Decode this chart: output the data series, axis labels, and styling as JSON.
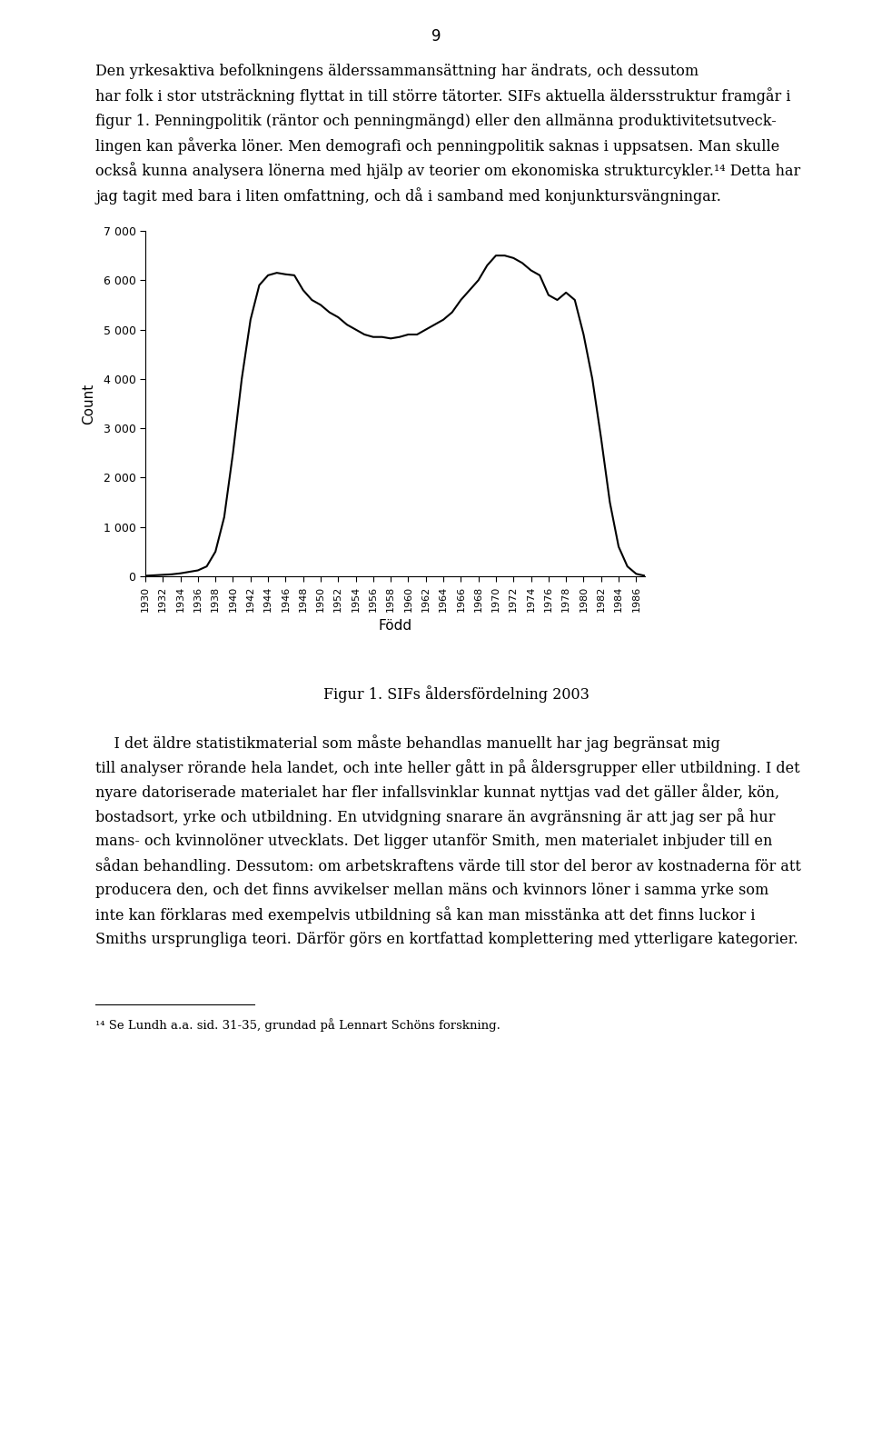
{
  "page_number": "9",
  "para1_line1": "Den yrkesaktiva befolkningens älderssammansättning har ändrats, och dessutom",
  "para1_line2": "har folk i stor utsträckning flyttat in till större tätorter. SIFs aktuella äldersstruktur framgår i",
  "para1_line3": "figur 1. Penningpolitik (räntor och penningmängd) eller den allmänna produktivitetsutveck-",
  "para1_line4": "lingen kan påverka löner. Men demografi och penningpolitik saknas i uppsatsen. Man skulle",
  "para1_line5": "också kunna analysera lönerna med hjälp av teorier om ekonomiska strukturcykler.¹⁴ Detta har",
  "para1_line6": "jag tagit med bara i liten omfattning, och då i samband med konjunktursvängningar.",
  "fig_caption": "Figur 1. SIFs åldersfördelning 2003",
  "para2_line1": "    I det äldre statistikmaterial som måste behandlas manuellt har jag begränsat mig",
  "para2_line2": "till analyser rörande hela landet, och inte heller gått in på åldersgrupper eller utbildning. I det",
  "para2_line3": "nyare datoriserade materialet har fler infallsvinklar kunnat nyttjas vad det gäller ålder, kön,",
  "para2_line4": "bostadsort, yrke och utbildning. En utvidgning snarare än avgränsning är att jag ser på hur",
  "para2_line5": "mans- och kvinnolöner utvecklats. Det ligger utanför Smith, men materialet inbjuder till en",
  "para2_line6": "sådan behandling. Dessutom: om arbetskraftens värde till stor del beror av kostnaderna för att",
  "para2_line7": "producera den, och det finns avvikelser mellan mäns och kvinnors löner i samma yrke som",
  "para2_line8": "inte kan förklaras med exempelvis utbildning så kan man misstänka att det finns luckor i",
  "para2_line9": "Smiths ursprungliga teori. Därför görs en kortfattad komplettering med ytterligare kategorier.",
  "footnote_line": "¹⁴ Se Lundh a.a. sid. 31-35, grundad på Lennart Schöns forskning.",
  "ylabel": "Count",
  "xlabel": "Född",
  "ylim": [
    0,
    7000
  ],
  "yticks": [
    0,
    1000,
    2000,
    3000,
    4000,
    5000,
    6000,
    7000
  ],
  "ytick_labels": [
    "0",
    "1 000",
    "2 000",
    "3 000",
    "4 000",
    "5 000",
    "6 000",
    "7 000"
  ],
  "xticks": [
    1930,
    1932,
    1934,
    1936,
    1938,
    1940,
    1942,
    1944,
    1946,
    1948,
    1950,
    1952,
    1954,
    1956,
    1958,
    1960,
    1962,
    1964,
    1966,
    1968,
    1970,
    1972,
    1974,
    1976,
    1978,
    1980,
    1982,
    1984,
    1986
  ],
  "x": [
    1930,
    1931,
    1932,
    1933,
    1934,
    1935,
    1936,
    1937,
    1938,
    1939,
    1940,
    1941,
    1942,
    1943,
    1944,
    1945,
    1946,
    1947,
    1948,
    1949,
    1950,
    1951,
    1952,
    1953,
    1954,
    1955,
    1956,
    1957,
    1958,
    1959,
    1960,
    1961,
    1962,
    1963,
    1964,
    1965,
    1966,
    1967,
    1968,
    1969,
    1970,
    1971,
    1972,
    1973,
    1974,
    1975,
    1976,
    1977,
    1978,
    1979,
    1980,
    1981,
    1982,
    1983,
    1984,
    1985,
    1986,
    1987
  ],
  "y": [
    10,
    20,
    30,
    40,
    60,
    90,
    120,
    200,
    500,
    1200,
    2500,
    4000,
    5200,
    5900,
    6100,
    6150,
    6120,
    6100,
    5800,
    5600,
    5500,
    5350,
    5250,
    5100,
    5000,
    4900,
    4850,
    4850,
    4820,
    4850,
    4900,
    4900,
    5000,
    5100,
    5200,
    5350,
    5600,
    5800,
    6000,
    6300,
    6500,
    6500,
    6450,
    6350,
    6200,
    6100,
    5700,
    5600,
    5750,
    5600,
    4900,
    4000,
    2800,
    1500,
    600,
    200,
    50,
    10
  ],
  "line_color": "#000000",
  "line_width": 1.5,
  "background_color": "#ffffff",
  "text_color": "#000000",
  "body_fontsize": 11.5,
  "caption_fontsize": 11.5,
  "footnote_fontsize": 9.5
}
